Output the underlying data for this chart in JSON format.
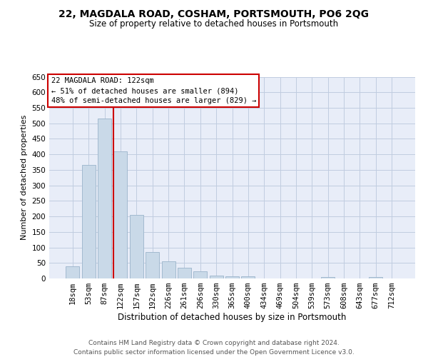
{
  "title": "22, MAGDALA ROAD, COSHAM, PORTSMOUTH, PO6 2QG",
  "subtitle": "Size of property relative to detached houses in Portsmouth",
  "xlabel": "Distribution of detached houses by size in Portsmouth",
  "ylabel": "Number of detached properties",
  "bar_labels": [
    "18sqm",
    "53sqm",
    "87sqm",
    "122sqm",
    "157sqm",
    "192sqm",
    "226sqm",
    "261sqm",
    "296sqm",
    "330sqm",
    "365sqm",
    "400sqm",
    "434sqm",
    "469sqm",
    "504sqm",
    "539sqm",
    "573sqm",
    "608sqm",
    "643sqm",
    "677sqm",
    "712sqm"
  ],
  "bar_values": [
    38,
    365,
    515,
    410,
    205,
    84,
    55,
    35,
    22,
    10,
    8,
    8,
    0,
    0,
    0,
    0,
    5,
    0,
    0,
    5,
    0
  ],
  "bar_color": "#c9d9e8",
  "bar_edge_color": "#9ab4cb",
  "red_line_index": 3,
  "annotation_title": "22 MAGDALA ROAD: 122sqm",
  "annotation_line1": "← 51% of detached houses are smaller (894)",
  "annotation_line2": "48% of semi-detached houses are larger (829) →",
  "annotation_box_color": "#ffffff",
  "annotation_box_edge_color": "#cc0000",
  "red_line_color": "#cc0000",
  "grid_color": "#c0cce0",
  "plot_bg_color": "#e8edf8",
  "footer1": "Contains HM Land Registry data © Crown copyright and database right 2024.",
  "footer2": "Contains public sector information licensed under the Open Government Licence v3.0.",
  "ylim": [
    0,
    650
  ],
  "yticks": [
    0,
    50,
    100,
    150,
    200,
    250,
    300,
    350,
    400,
    450,
    500,
    550,
    600,
    650
  ],
  "title_fontsize": 10,
  "subtitle_fontsize": 8.5,
  "ylabel_fontsize": 8,
  "xlabel_fontsize": 8.5,
  "tick_fontsize": 7.5,
  "footer_fontsize": 6.5
}
